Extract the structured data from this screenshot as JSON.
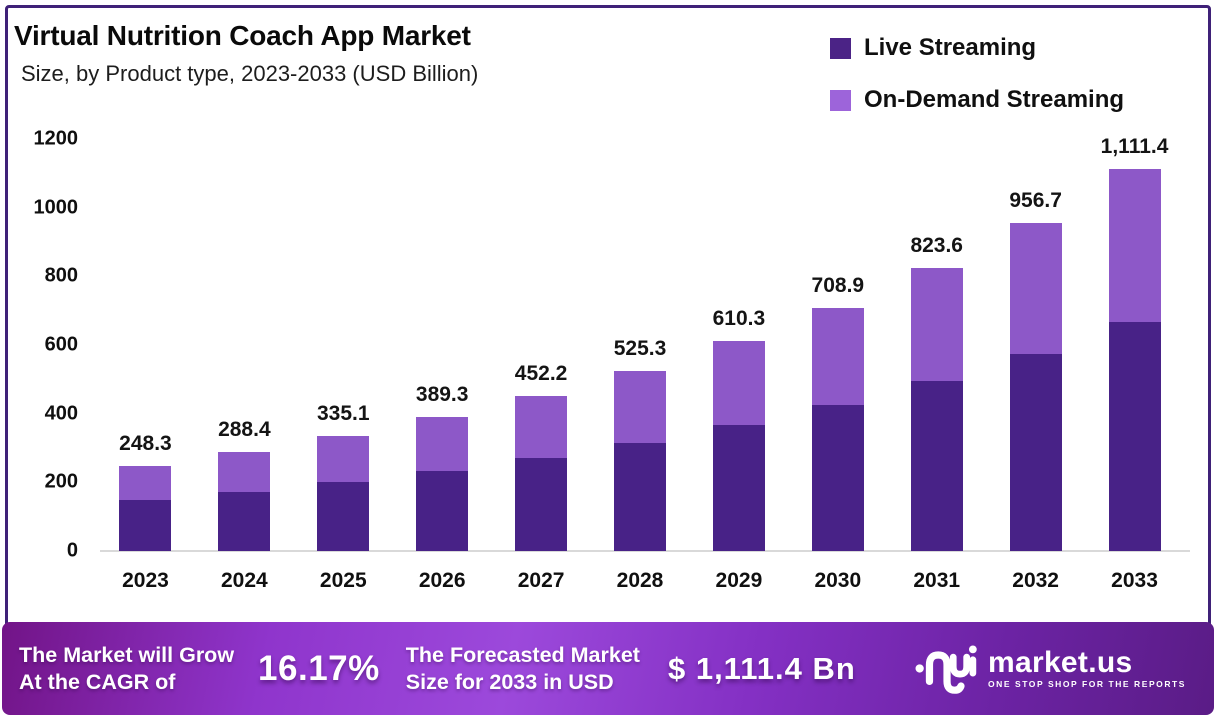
{
  "header": {
    "title": "Virtual Nutrition Coach App Market",
    "subtitle": "Size, by Product type, 2023-2033 (USD Billion)"
  },
  "legend": [
    {
      "label": "Live Streaming",
      "color": "#4b2386"
    },
    {
      "label": "On-Demand Streaming",
      "color": "#9d64da"
    }
  ],
  "chart_data": {
    "type": "bar",
    "stacked": true,
    "title": "Virtual Nutrition Coach App Market Size, by Product type, 2023-2033 (USD Billion)",
    "xlabel": "",
    "ylabel": "",
    "ylim": [
      0,
      1200
    ],
    "ytick_step": 200,
    "grid": false,
    "legend_position": "top-right",
    "categories": [
      "2023",
      "2024",
      "2025",
      "2026",
      "2027",
      "2028",
      "2029",
      "2030",
      "2031",
      "2032",
      "2033"
    ],
    "totals": [
      248.3,
      288.4,
      335.1,
      389.3,
      452.2,
      525.3,
      610.3,
      708.9,
      823.6,
      956.7,
      1111.4
    ],
    "total_labels": [
      "248.3",
      "288.4",
      "335.1",
      "389.3",
      "452.2",
      "525.3",
      "610.3",
      "708.9",
      "823.6",
      "956.7",
      "1,111.4"
    ],
    "series": [
      {
        "name": "Live Streaming",
        "color": "#482287",
        "values": [
          149.0,
          173.0,
          201.1,
          233.6,
          271.3,
          315.2,
          366.2,
          425.3,
          494.2,
          574.0,
          666.8
        ]
      },
      {
        "name": "On-Demand Streaming",
        "color": "#8d58c8",
        "values": [
          99.3,
          115.4,
          134.0,
          155.7,
          180.9,
          210.1,
          244.1,
          283.6,
          329.4,
          382.7,
          444.6
        ]
      }
    ]
  },
  "footer": {
    "cagr_label_line1": "The Market will Grow",
    "cagr_label_line2": "At the CAGR of",
    "cagr_value": "16.17%",
    "forecast_label_line1": "The Forecasted Market",
    "forecast_label_line2": "Size for 2033 in USD",
    "forecast_value": "$ 1,111.4 Bn",
    "brand": {
      "name": "market.us",
      "tagline": "ONE STOP SHOP FOR THE REPORTS"
    }
  },
  "colors": {
    "frame_border": "#3f2178",
    "axis_line": "#d9d9d9",
    "banner_gradient_left": "#721487",
    "banner_gradient_center": "#9c49db",
    "banner_gradient_right": "#5a1c86"
  }
}
